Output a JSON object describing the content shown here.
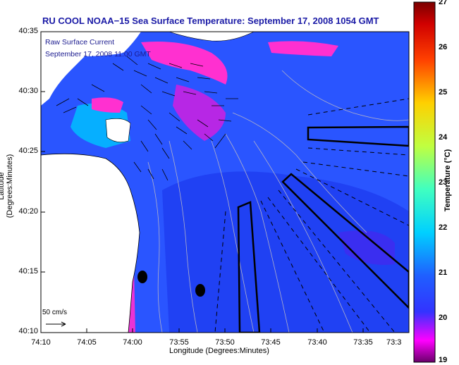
{
  "title": "RU COOL  NOAA−15  Sea Surface Temperature:  September 17, 2008 1054 GMT",
  "overlay": {
    "line1": "Raw Surface Current",
    "line2": "September 17, 2008 11:00 GMT"
  },
  "scale_label": "50 cm/s",
  "axes": {
    "xlabel": "Longitude (Degrees:Minutes)",
    "ylabel": "Latitude (Degrees:Minutes)",
    "xticks": [
      "74:10",
      "74:05",
      "74:00",
      "73:55",
      "73:50",
      "73:45",
      "73:40",
      "73:35",
      "73:3"
    ],
    "yticks": [
      "40:35",
      "40:30",
      "40:25",
      "40:20",
      "40:15",
      "40:10"
    ]
  },
  "colorbar": {
    "title": "Temperature (°C)",
    "ticks": [
      "27",
      "26",
      "25",
      "24",
      "23",
      "22",
      "21",
      "20",
      "19"
    ],
    "range": [
      19,
      27
    ],
    "colors": [
      "#6a006a",
      "#ff00ff",
      "#3333ff",
      "#1f5fff",
      "#00d0ff",
      "#40ffc0",
      "#c0ff40",
      "#ffd000",
      "#ff4000",
      "#d00000",
      "#7a0000"
    ]
  },
  "map_colors": {
    "water": "#2a55ff",
    "warm_water": "#ff30d0",
    "cool_water": "#00c0ff",
    "land": "#ffffff"
  }
}
